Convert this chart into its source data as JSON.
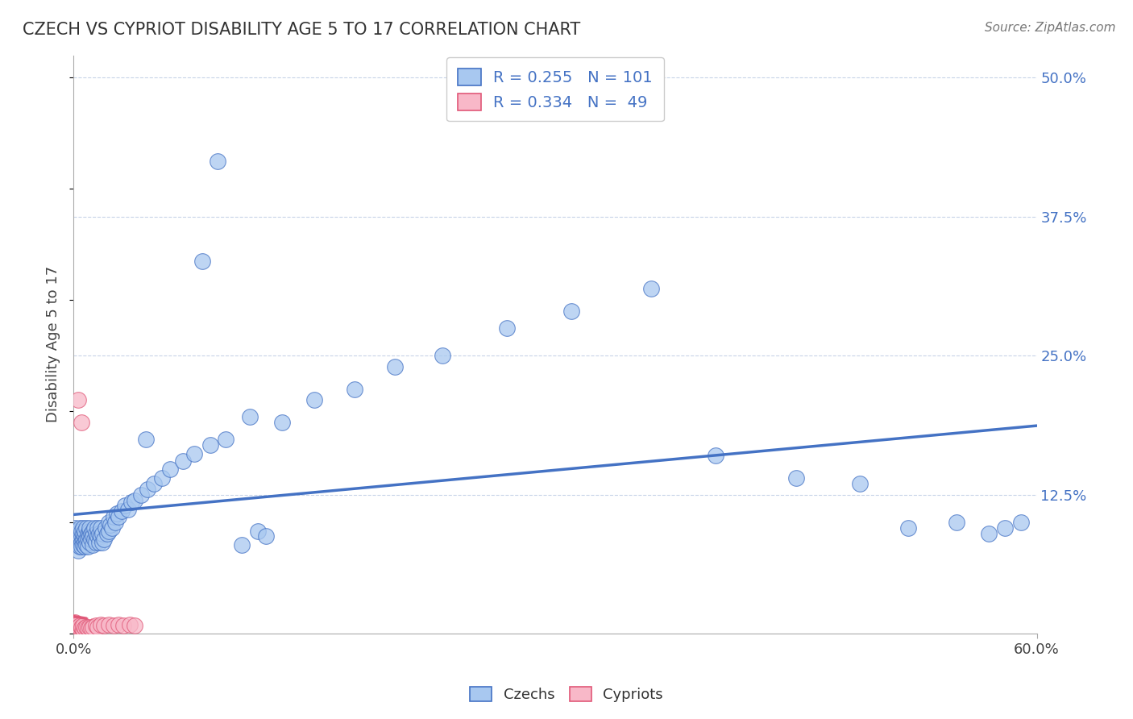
{
  "title": "CZECH VS CYPRIOT DISABILITY AGE 5 TO 17 CORRELATION CHART",
  "source": "Source: ZipAtlas.com",
  "ylabel": "Disability Age 5 to 17",
  "xlim": [
    0.0,
    0.6
  ],
  "ylim": [
    0.0,
    0.52
  ],
  "czech_R": 0.255,
  "czech_N": 101,
  "cypriot_R": 0.334,
  "cypriot_N": 49,
  "czech_color": "#a8c8f0",
  "cypriot_color": "#f8b8c8",
  "czech_line_color": "#4472c4",
  "cypriot_line_color": "#e05878",
  "cypriot_line_color2": "#f0a0b0",
  "background_color": "#ffffff",
  "grid_color": "#c8d4e8",
  "czech_x": [
    0.001,
    0.001,
    0.002,
    0.002,
    0.002,
    0.003,
    0.003,
    0.003,
    0.003,
    0.004,
    0.004,
    0.004,
    0.004,
    0.004,
    0.005,
    0.005,
    0.005,
    0.005,
    0.006,
    0.006,
    0.006,
    0.006,
    0.007,
    0.007,
    0.007,
    0.007,
    0.008,
    0.008,
    0.008,
    0.009,
    0.009,
    0.009,
    0.01,
    0.01,
    0.01,
    0.01,
    0.011,
    0.011,
    0.012,
    0.012,
    0.012,
    0.013,
    0.013,
    0.014,
    0.014,
    0.015,
    0.015,
    0.016,
    0.016,
    0.017,
    0.017,
    0.018,
    0.018,
    0.019,
    0.02,
    0.021,
    0.022,
    0.022,
    0.023,
    0.024,
    0.025,
    0.026,
    0.027,
    0.028,
    0.03,
    0.032,
    0.034,
    0.036,
    0.038,
    0.042,
    0.046,
    0.05,
    0.055,
    0.06,
    0.068,
    0.075,
    0.085,
    0.095,
    0.11,
    0.13,
    0.15,
    0.175,
    0.2,
    0.23,
    0.27,
    0.31,
    0.36,
    0.4,
    0.45,
    0.49,
    0.52,
    0.55,
    0.57,
    0.58,
    0.59,
    0.08,
    0.09,
    0.045,
    0.105,
    0.115,
    0.12
  ],
  "czech_y": [
    0.095,
    0.09,
    0.085,
    0.092,
    0.08,
    0.088,
    0.082,
    0.09,
    0.075,
    0.085,
    0.092,
    0.088,
    0.078,
    0.095,
    0.088,
    0.082,
    0.092,
    0.078,
    0.085,
    0.09,
    0.095,
    0.08,
    0.088,
    0.082,
    0.092,
    0.078,
    0.085,
    0.095,
    0.08,
    0.09,
    0.085,
    0.078,
    0.092,
    0.088,
    0.082,
    0.095,
    0.09,
    0.085,
    0.092,
    0.088,
    0.08,
    0.095,
    0.085,
    0.09,
    0.082,
    0.088,
    0.095,
    0.082,
    0.09,
    0.088,
    0.095,
    0.082,
    0.09,
    0.085,
    0.095,
    0.09,
    0.1,
    0.092,
    0.098,
    0.095,
    0.105,
    0.1,
    0.108,
    0.105,
    0.11,
    0.115,
    0.112,
    0.118,
    0.12,
    0.125,
    0.13,
    0.135,
    0.14,
    0.148,
    0.155,
    0.162,
    0.17,
    0.175,
    0.195,
    0.19,
    0.21,
    0.22,
    0.24,
    0.25,
    0.275,
    0.29,
    0.31,
    0.16,
    0.14,
    0.135,
    0.095,
    0.1,
    0.09,
    0.095,
    0.1,
    0.335,
    0.425,
    0.175,
    0.08,
    0.092,
    0.088
  ],
  "cypriot_x": [
    0.0005,
    0.0005,
    0.0005,
    0.0005,
    0.0005,
    0.001,
    0.001,
    0.001,
    0.001,
    0.001,
    0.001,
    0.001,
    0.001,
    0.001,
    0.001,
    0.001,
    0.002,
    0.002,
    0.002,
    0.002,
    0.002,
    0.002,
    0.003,
    0.003,
    0.003,
    0.004,
    0.004,
    0.005,
    0.005,
    0.006,
    0.006,
    0.007,
    0.008,
    0.009,
    0.01,
    0.011,
    0.012,
    0.014,
    0.015,
    0.017,
    0.019,
    0.022,
    0.025,
    0.028,
    0.031,
    0.035,
    0.038,
    0.005,
    0.003
  ],
  "cypriot_y": [
    0.005,
    0.003,
    0.008,
    0.004,
    0.006,
    0.005,
    0.003,
    0.008,
    0.01,
    0.004,
    0.006,
    0.002,
    0.007,
    0.009,
    0.003,
    0.005,
    0.005,
    0.003,
    0.007,
    0.004,
    0.006,
    0.008,
    0.005,
    0.004,
    0.006,
    0.005,
    0.007,
    0.005,
    0.006,
    0.004,
    0.007,
    0.005,
    0.006,
    0.005,
    0.006,
    0.005,
    0.006,
    0.007,
    0.006,
    0.008,
    0.007,
    0.008,
    0.007,
    0.008,
    0.007,
    0.008,
    0.007,
    0.19,
    0.21
  ]
}
